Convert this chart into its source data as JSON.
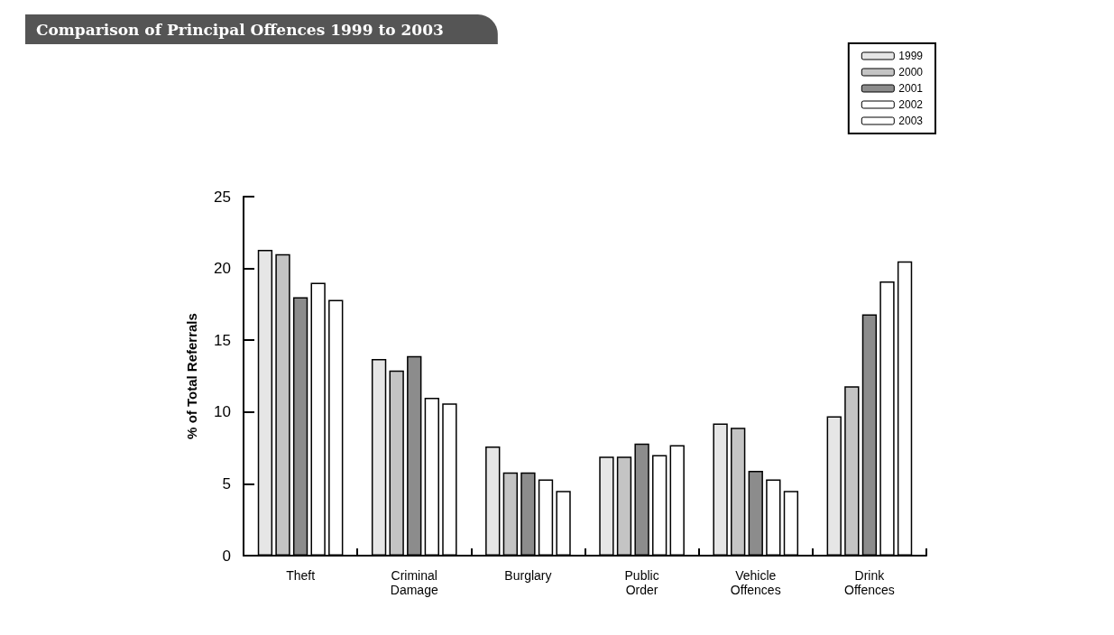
{
  "chart_data": {
    "type": "bar",
    "title": "Comparison of Principal Offences 1999 to 2003",
    "ylabel": "% of Total Referrals",
    "categories": [
      "Theft",
      "Criminal\nDamage",
      "Burglary",
      "Public\nOrder",
      "Vehicle\nOffences",
      "Drink\nOffences"
    ],
    "series": [
      {
        "name": "1999",
        "color": "#e6e6e6",
        "values": [
          21.3,
          13.7,
          7.6,
          6.9,
          9.2,
          9.7
        ]
      },
      {
        "name": "2000",
        "color": "#c4c4c4",
        "values": [
          21.0,
          12.9,
          5.8,
          6.9,
          8.9,
          11.8
        ]
      },
      {
        "name": "2001",
        "color": "#8c8c8c",
        "values": [
          18.0,
          13.9,
          5.8,
          7.8,
          5.9,
          16.8
        ]
      },
      {
        "name": "2002",
        "color": "#ffffff",
        "values": [
          19.0,
          11.0,
          5.3,
          7.0,
          5.3,
          19.1
        ]
      },
      {
        "name": "2003",
        "color": "#ffffff",
        "values": [
          17.8,
          10.6,
          4.5,
          7.7,
          4.5,
          20.5
        ]
      }
    ],
    "ylim": [
      0,
      25
    ],
    "yticks": [
      0,
      5,
      10,
      15,
      20,
      25
    ],
    "grid": false,
    "legend": "top right"
  }
}
